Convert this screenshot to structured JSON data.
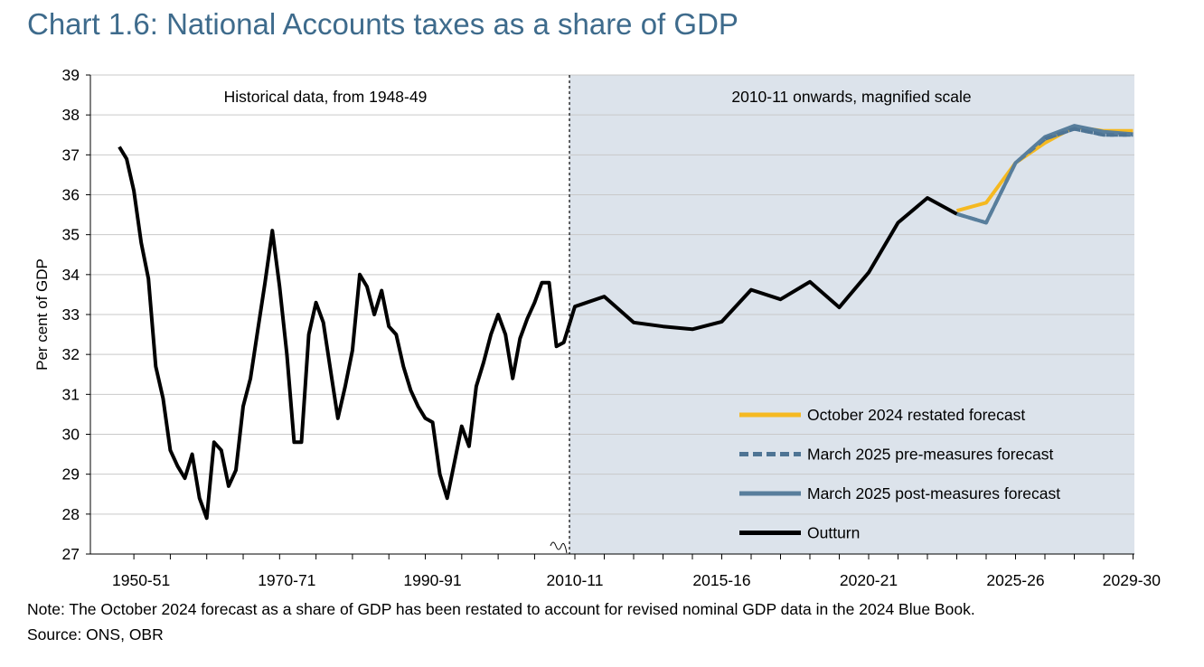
{
  "title": "Chart 1.6: National Accounts taxes as a share of GDP",
  "note": "Note: The October 2024 forecast as a share of GDP has been restated to account for revised nominal GDP data in the 2024 Blue Book.",
  "source": "Source: ONS, OBR",
  "chart_data": {
    "type": "line",
    "ylabel": "Per cent of GDP",
    "xlabel": "",
    "ylim": [
      27,
      39
    ],
    "yticks": [
      27,
      28,
      29,
      30,
      31,
      32,
      33,
      34,
      35,
      36,
      37,
      38,
      39
    ],
    "grid": true,
    "legend_position": "bottom-right",
    "panels": [
      {
        "label": "Historical data, from 1948-49",
        "x_ticks": [
          "1950-51",
          "1970-71",
          "1990-91"
        ],
        "shaded": false
      },
      {
        "label": "2010-11 onwards, magnified scale",
        "x_ticks": [
          "2010-11",
          "2015-16",
          "2020-21",
          "2025-26",
          "2029-30"
        ],
        "shaded": true,
        "shade_color": "#dce3eb"
      }
    ],
    "series": [
      {
        "name": "Outturn",
        "color": "#000000",
        "style": "solid",
        "historical_start_year": 1948,
        "historical_values": [
          37.2,
          36.9,
          36.1,
          34.8,
          33.9,
          31.7,
          30.9,
          29.6,
          29.2,
          28.9,
          29.5,
          28.4,
          27.9,
          29.8,
          29.6,
          28.7,
          29.1,
          30.7,
          31.4,
          32.6,
          33.8,
          35.1,
          33.7,
          32.0,
          29.8,
          29.8,
          32.5,
          33.3,
          32.8,
          31.6,
          30.4,
          31.2,
          32.1,
          34.0,
          33.7,
          33.0,
          33.6,
          32.7,
          32.5,
          31.7,
          31.1,
          30.7,
          30.4,
          30.3,
          29.0,
          28.4,
          29.3,
          30.2,
          29.7,
          31.2,
          31.8,
          32.5,
          33.0,
          32.5,
          31.4,
          32.4,
          32.9,
          33.3,
          33.8,
          33.8,
          32.2,
          32.3
        ],
        "categories": [
          "2010-11",
          "2011-12",
          "2012-13",
          "2013-14",
          "2014-15",
          "2015-16",
          "2016-17",
          "2017-18",
          "2018-19",
          "2019-20",
          "2020-21",
          "2021-22",
          "2022-23",
          "2023-24"
        ],
        "values": [
          33.2,
          33.45,
          32.8,
          32.7,
          32.63,
          32.82,
          33.62,
          33.38,
          33.82,
          33.18,
          34.05,
          35.3,
          35.92,
          35.52
        ]
      },
      {
        "name": "October 2024 restated forecast",
        "color": "#f5b921",
        "style": "solid",
        "categories": [
          "2023-24",
          "2024-25",
          "2025-26",
          "2026-27",
          "2027-28",
          "2028-29",
          "2029-30"
        ],
        "values": [
          35.6,
          35.8,
          36.8,
          37.3,
          37.7,
          37.6,
          37.6
        ]
      },
      {
        "name": "March 2025 pre-measures forecast",
        "color": "#4e7494",
        "style": "dashed",
        "categories": [
          "2023-24",
          "2024-25",
          "2025-26",
          "2026-27",
          "2027-28",
          "2028-29",
          "2029-30"
        ],
        "values": [
          35.52,
          35.3,
          36.8,
          37.4,
          37.65,
          37.5,
          37.5
        ]
      },
      {
        "name": "March 2025 post-measures forecast",
        "color": "#587e9c",
        "style": "solid",
        "categories": [
          "2023-24",
          "2024-25",
          "2025-26",
          "2026-27",
          "2027-28",
          "2028-29",
          "2029-30"
        ],
        "values": [
          35.52,
          35.3,
          36.8,
          37.45,
          37.73,
          37.58,
          37.52
        ]
      }
    ],
    "legend_order": [
      "October 2024 restated forecast",
      "March 2025 pre-measures forecast",
      "March 2025 post-measures forecast",
      "Outturn"
    ]
  }
}
